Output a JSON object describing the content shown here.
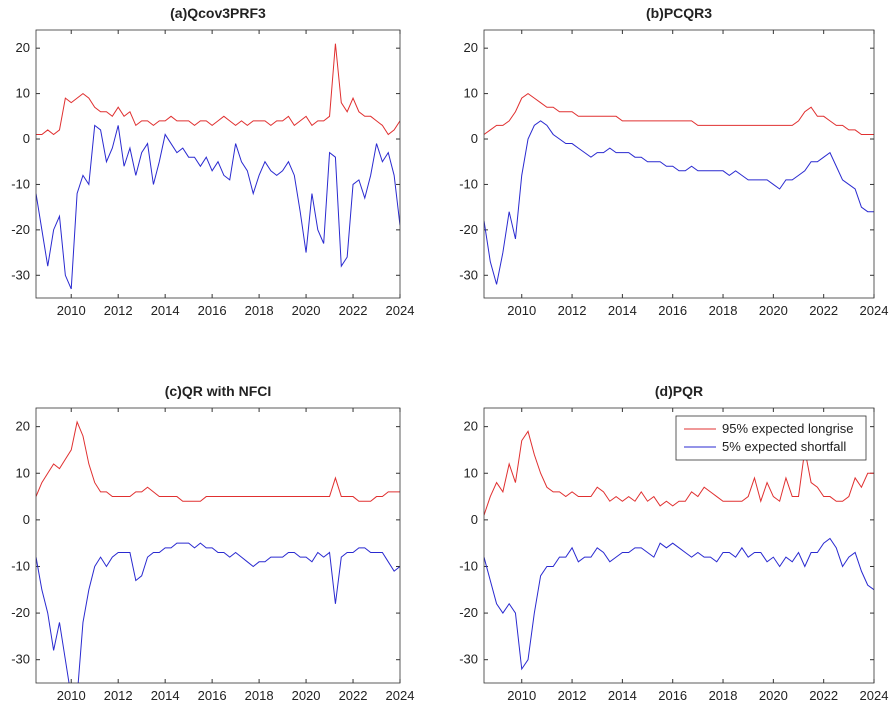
{
  "chart_data": [
    {
      "type": "line",
      "title": "(a)Qcov3PRF3",
      "x": [
        2008.5,
        2008.75,
        2009,
        2009.25,
        2009.5,
        2009.75,
        2010,
        2010.25,
        2010.5,
        2010.75,
        2011,
        2011.25,
        2011.5,
        2011.75,
        2012,
        2012.25,
        2012.5,
        2012.75,
        2013,
        2013.25,
        2013.5,
        2013.75,
        2014,
        2014.25,
        2014.5,
        2014.75,
        2015,
        2015.25,
        2015.5,
        2015.75,
        2016,
        2016.25,
        2016.5,
        2016.75,
        2017,
        2017.25,
        2017.5,
        2017.75,
        2018,
        2018.25,
        2018.5,
        2018.75,
        2019,
        2019.25,
        2019.5,
        2019.75,
        2020,
        2020.25,
        2020.5,
        2020.75,
        2021,
        2021.25,
        2021.5,
        2021.75,
        2022,
        2022.25,
        2022.5,
        2022.75,
        2023,
        2023.25,
        2023.5,
        2023.75,
        2024
      ],
      "series": [
        {
          "color": "#e03030",
          "values": [
            1,
            1,
            2,
            1,
            2,
            9,
            8,
            9,
            10,
            9,
            7,
            6,
            6,
            5,
            7,
            5,
            6,
            3,
            4,
            4,
            3,
            4,
            4,
            5,
            4,
            4,
            4,
            3,
            4,
            4,
            3,
            4,
            5,
            4,
            3,
            4,
            3,
            4,
            4,
            4,
            3,
            4,
            4,
            5,
            3,
            4,
            5,
            3,
            4,
            4,
            5,
            21,
            8,
            6,
            9,
            6,
            5,
            5,
            4,
            3,
            1,
            2,
            4
          ]
        },
        {
          "color": "#2a2ad0",
          "values": [
            -12,
            -20,
            -28,
            -20,
            -17,
            -30,
            -33,
            -12,
            -8,
            -10,
            3,
            2,
            -5,
            -2,
            3,
            -6,
            -2,
            -8,
            -3,
            -1,
            -10,
            -5,
            1,
            -1,
            -3,
            -2,
            -4,
            -4,
            -6,
            -4,
            -7,
            -5,
            -8,
            -9,
            -1,
            -5,
            -7,
            -12,
            -8,
            -5,
            -7,
            -8,
            -7,
            -5,
            -8,
            -16,
            -25,
            -12,
            -20,
            -23,
            -3,
            -4,
            -28,
            -26,
            -10,
            -9,
            -13,
            -8,
            -1,
            -5,
            -3,
            -8,
            -19
          ]
        }
      ],
      "xlim": [
        2008.5,
        2024
      ],
      "ylim": [
        -35,
        24
      ],
      "xticks": [
        2010,
        2012,
        2014,
        2016,
        2018,
        2020,
        2022,
        2024
      ],
      "yticks": [
        -30,
        -20,
        -10,
        0,
        10,
        20
      ]
    },
    {
      "type": "line",
      "title": "(b)PCQR3",
      "x": [
        2008.5,
        2008.75,
        2009,
        2009.25,
        2009.5,
        2009.75,
        2010,
        2010.25,
        2010.5,
        2010.75,
        2011,
        2011.25,
        2011.5,
        2011.75,
        2012,
        2012.25,
        2012.5,
        2012.75,
        2013,
        2013.25,
        2013.5,
        2013.75,
        2014,
        2014.25,
        2014.5,
        2014.75,
        2015,
        2015.25,
        2015.5,
        2015.75,
        2016,
        2016.25,
        2016.5,
        2016.75,
        2017,
        2017.25,
        2017.5,
        2017.75,
        2018,
        2018.25,
        2018.5,
        2018.75,
        2019,
        2019.25,
        2019.5,
        2019.75,
        2020,
        2020.25,
        2020.5,
        2020.75,
        2021,
        2021.25,
        2021.5,
        2021.75,
        2022,
        2022.25,
        2022.5,
        2022.75,
        2023,
        2023.25,
        2023.5,
        2023.75,
        2024
      ],
      "series": [
        {
          "color": "#e03030",
          "values": [
            1,
            2,
            3,
            3,
            4,
            6,
            9,
            10,
            9,
            8,
            7,
            7,
            6,
            6,
            6,
            5,
            5,
            5,
            5,
            5,
            5,
            5,
            4,
            4,
            4,
            4,
            4,
            4,
            4,
            4,
            4,
            4,
            4,
            4,
            3,
            3,
            3,
            3,
            3,
            3,
            3,
            3,
            3,
            3,
            3,
            3,
            3,
            3,
            3,
            3,
            4,
            6,
            7,
            5,
            5,
            4,
            3,
            3,
            2,
            2,
            1,
            1,
            1
          ]
        },
        {
          "color": "#2a2ad0",
          "values": [
            -18,
            -27,
            -32,
            -25,
            -16,
            -22,
            -8,
            0,
            3,
            4,
            3,
            1,
            0,
            -1,
            -1,
            -2,
            -3,
            -4,
            -3,
            -3,
            -2,
            -3,
            -3,
            -3,
            -4,
            -4,
            -5,
            -5,
            -5,
            -6,
            -6,
            -7,
            -7,
            -6,
            -7,
            -7,
            -7,
            -7,
            -7,
            -8,
            -7,
            -8,
            -9,
            -9,
            -9,
            -9,
            -10,
            -11,
            -9,
            -9,
            -8,
            -7,
            -5,
            -5,
            -4,
            -3,
            -6,
            -9,
            -10,
            -11,
            -15,
            -16,
            -16
          ]
        }
      ],
      "xlim": [
        2008.5,
        2024
      ],
      "ylim": [
        -35,
        24
      ],
      "xticks": [
        2010,
        2012,
        2014,
        2016,
        2018,
        2020,
        2022,
        2024
      ],
      "yticks": [
        -30,
        -20,
        -10,
        0,
        10,
        20
      ]
    },
    {
      "type": "line",
      "title": "(c)QR with NFCI",
      "x": [
        2008.5,
        2008.75,
        2009,
        2009.25,
        2009.5,
        2009.75,
        2010,
        2010.25,
        2010.5,
        2010.75,
        2011,
        2011.25,
        2011.5,
        2011.75,
        2012,
        2012.25,
        2012.5,
        2012.75,
        2013,
        2013.25,
        2013.5,
        2013.75,
        2014,
        2014.25,
        2014.5,
        2014.75,
        2015,
        2015.25,
        2015.5,
        2015.75,
        2016,
        2016.25,
        2016.5,
        2016.75,
        2017,
        2017.25,
        2017.5,
        2017.75,
        2018,
        2018.25,
        2018.5,
        2018.75,
        2019,
        2019.25,
        2019.5,
        2019.75,
        2020,
        2020.25,
        2020.5,
        2020.75,
        2021,
        2021.25,
        2021.5,
        2021.75,
        2022,
        2022.25,
        2022.5,
        2022.75,
        2023,
        2023.25,
        2023.5,
        2023.75,
        2024
      ],
      "series": [
        {
          "color": "#e03030",
          "values": [
            5,
            8,
            10,
            12,
            11,
            13,
            15,
            21,
            18,
            12,
            8,
            6,
            6,
            5,
            5,
            5,
            5,
            6,
            6,
            7,
            6,
            5,
            5,
            5,
            5,
            4,
            4,
            4,
            4,
            5,
            5,
            5,
            5,
            5,
            5,
            5,
            5,
            5,
            5,
            5,
            5,
            5,
            5,
            5,
            5,
            5,
            5,
            5,
            5,
            5,
            5,
            9,
            5,
            5,
            5,
            4,
            4,
            4,
            5,
            5,
            6,
            6,
            6
          ]
        },
        {
          "color": "#2a2ad0",
          "values": [
            -8,
            -15,
            -20,
            -28,
            -22,
            -30,
            -38,
            -38,
            -22,
            -15,
            -10,
            -8,
            -10,
            -8,
            -7,
            -7,
            -7,
            -13,
            -12,
            -8,
            -7,
            -7,
            -6,
            -6,
            -5,
            -5,
            -5,
            -6,
            -5,
            -6,
            -6,
            -7,
            -7,
            -8,
            -7,
            -8,
            -9,
            -10,
            -9,
            -9,
            -8,
            -8,
            -8,
            -7,
            -7,
            -8,
            -8,
            -9,
            -7,
            -8,
            -7,
            -18,
            -8,
            -7,
            -7,
            -6,
            -6,
            -7,
            -7,
            -7,
            -9,
            -11,
            -10
          ]
        }
      ],
      "xlim": [
        2008.5,
        2024
      ],
      "ylim": [
        -35,
        24
      ],
      "xticks": [
        2010,
        2012,
        2014,
        2016,
        2018,
        2020,
        2022,
        2024
      ],
      "yticks": [
        -30,
        -20,
        -10,
        0,
        10,
        20
      ]
    },
    {
      "type": "line",
      "title": "(d)PQR",
      "legend": "northeast",
      "x": [
        2008.5,
        2008.75,
        2009,
        2009.25,
        2009.5,
        2009.75,
        2010,
        2010.25,
        2010.5,
        2010.75,
        2011,
        2011.25,
        2011.5,
        2011.75,
        2012,
        2012.25,
        2012.5,
        2012.75,
        2013,
        2013.25,
        2013.5,
        2013.75,
        2014,
        2014.25,
        2014.5,
        2014.75,
        2015,
        2015.25,
        2015.5,
        2015.75,
        2016,
        2016.25,
        2016.5,
        2016.75,
        2017,
        2017.25,
        2017.5,
        2017.75,
        2018,
        2018.25,
        2018.5,
        2018.75,
        2019,
        2019.25,
        2019.5,
        2019.75,
        2020,
        2020.25,
        2020.5,
        2020.75,
        2021,
        2021.25,
        2021.5,
        2021.75,
        2022,
        2022.25,
        2022.5,
        2022.75,
        2023,
        2023.25,
        2023.5,
        2023.75,
        2024
      ],
      "series": [
        {
          "name": "95% expected longrise",
          "color": "#e03030",
          "values": [
            1,
            5,
            8,
            6,
            12,
            8,
            17,
            19,
            14,
            10,
            7,
            6,
            6,
            5,
            6,
            5,
            5,
            5,
            7,
            6,
            4,
            5,
            4,
            5,
            4,
            6,
            4,
            5,
            3,
            4,
            3,
            4,
            4,
            6,
            5,
            7,
            6,
            5,
            4,
            4,
            4,
            4,
            5,
            9,
            4,
            8,
            5,
            4,
            9,
            5,
            5,
            15,
            8,
            7,
            5,
            5,
            4,
            4,
            5,
            9,
            7,
            10,
            10
          ]
        },
        {
          "name": "5% expected shortfall",
          "color": "#2a2ad0",
          "values": [
            -8,
            -13,
            -18,
            -20,
            -18,
            -20,
            -32,
            -30,
            -20,
            -12,
            -10,
            -10,
            -8,
            -8,
            -6,
            -9,
            -8,
            -8,
            -6,
            -7,
            -9,
            -8,
            -7,
            -7,
            -6,
            -6,
            -7,
            -8,
            -5,
            -6,
            -5,
            -6,
            -7,
            -8,
            -7,
            -8,
            -8,
            -9,
            -7,
            -7,
            -8,
            -6,
            -8,
            -7,
            -7,
            -9,
            -8,
            -10,
            -8,
            -9,
            -7,
            -10,
            -7,
            -7,
            -5,
            -4,
            -6,
            -10,
            -8,
            -7,
            -11,
            -14,
            -15
          ]
        }
      ],
      "xlim": [
        2008.5,
        2024
      ],
      "ylim": [
        -35,
        24
      ],
      "xticks": [
        2010,
        2012,
        2014,
        2016,
        2018,
        2020,
        2022,
        2024
      ],
      "yticks": [
        -30,
        -20,
        -10,
        0,
        10,
        20
      ]
    }
  ]
}
